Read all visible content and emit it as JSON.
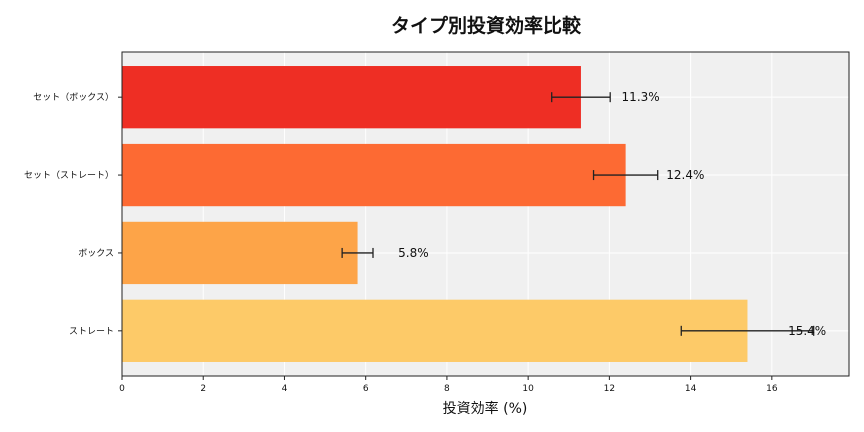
{
  "chart_data": {
    "type": "bar",
    "orientation": "horizontal",
    "title": "タイプ別投資効率比較",
    "xlabel": "投資効率 (%)",
    "ylabel": "",
    "categories": [
      "ストレート",
      "ボックス",
      "セット（ストレート）",
      "セット（ボックス）"
    ],
    "values": [
      15.4,
      5.8,
      12.4,
      11.3
    ],
    "errors": [
      1.63,
      0.38,
      0.79,
      0.72
    ],
    "data_labels": [
      "15.4%",
      "5.8%",
      "12.4%",
      "11.3%"
    ],
    "colors": [
      "#FDCA68",
      "#FDA448",
      "#FD6A33",
      "#EE2E24"
    ],
    "xlim": [
      0,
      17.9
    ],
    "xticks": [
      0,
      2,
      4,
      6,
      8,
      10,
      12,
      14,
      16
    ],
    "grid": true,
    "background": "#F0F0F0"
  }
}
